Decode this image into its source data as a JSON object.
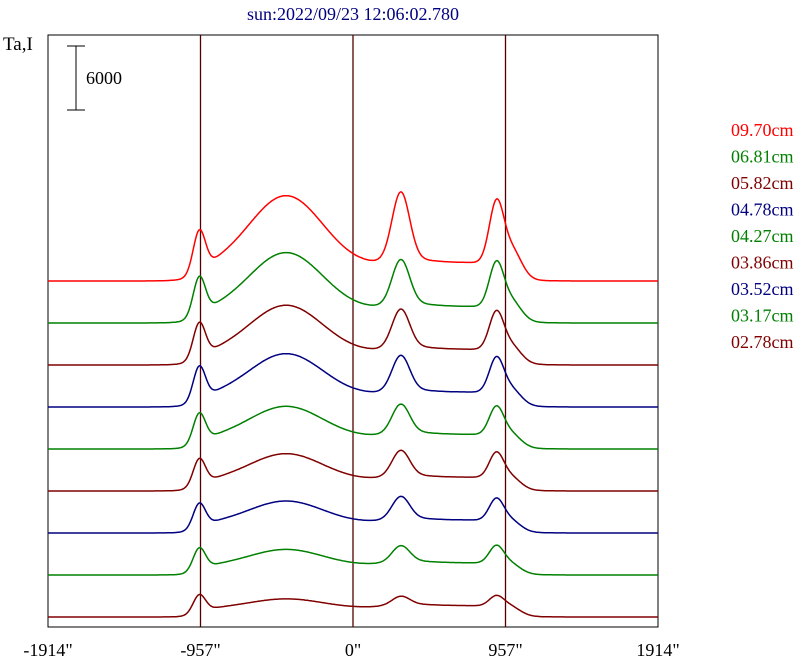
{
  "chart_data": {
    "type": "line",
    "title": "sun:2022/09/23 12:06:02.780",
    "ylabel": "Ta,I",
    "scale_bar_label": "6000",
    "xlim": [
      -1914,
      1914
    ],
    "x_ticks": [
      {
        "value": -1914,
        "label": "-1914\""
      },
      {
        "value": -957,
        "label": "-957\""
      },
      {
        "value": 0,
        "label": "0\""
      },
      {
        "value": 957,
        "label": "957\""
      },
      {
        "value": 1914,
        "label": "1914\""
      }
    ],
    "vertical_lines": [
      -957,
      0,
      957
    ],
    "series": [
      {
        "name": "09.70cm",
        "color": "#ff0000",
        "base": 8,
        "peaks": [
          3800,
          7600,
          6400,
          5700,
          6800
        ],
        "mid": [
          1800,
          1350,
          850
        ]
      },
      {
        "name": "06.81cm",
        "color": "#008000",
        "base": 7,
        "peaks": [
          3500,
          6200,
          4200,
          4200,
          4400
        ],
        "mid": [
          1700,
          1250,
          700
        ]
      },
      {
        "name": "05.82cm",
        "color": "#800000",
        "base": 6,
        "peaks": [
          3200,
          5200,
          3600,
          3600,
          3700
        ],
        "mid": [
          1600,
          1150,
          650
        ]
      },
      {
        "name": "04.78cm",
        "color": "#000080",
        "base": 5,
        "peaks": [
          3100,
          4600,
          3300,
          3300,
          3400
        ],
        "mid": [
          1500,
          1050,
          600
        ]
      },
      {
        "name": "04.27cm",
        "color": "#008000",
        "base": 4,
        "peaks": [
          2700,
          3600,
          2700,
          2700,
          2700
        ],
        "mid": [
          1400,
          1000,
          600
        ]
      },
      {
        "name": "03.86cm",
        "color": "#800000",
        "base": 3,
        "peaks": [
          2400,
          3100,
          2400,
          2400,
          2400
        ],
        "mid": [
          1300,
          900,
          550
        ]
      },
      {
        "name": "03.52cm",
        "color": "#000080",
        "base": 2,
        "peaks": [
          2200,
          2600,
          2100,
          2100,
          2100
        ],
        "mid": [
          1200,
          850,
          500
        ]
      },
      {
        "name": "03.17cm",
        "color": "#008000",
        "base": 1,
        "peaks": [
          2000,
          2000,
          1500,
          1700,
          1800
        ],
        "mid": [
          1100,
          800,
          450
        ]
      },
      {
        "name": "02.78cm",
        "color": "#800000",
        "base": 0,
        "peaks": [
          1600,
          1300,
          800,
          1000,
          1600
        ],
        "mid": [
          1000,
          700,
          400
        ]
      }
    ],
    "legend_position": "right"
  }
}
